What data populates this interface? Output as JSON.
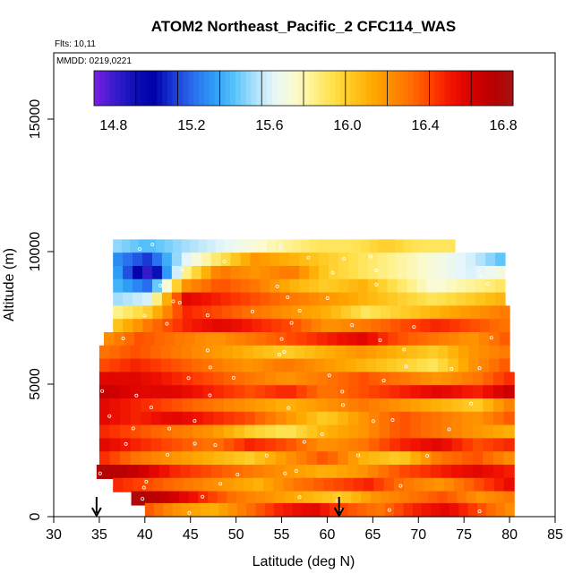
{
  "chart_data": {
    "type": "heatmap",
    "title": "ATOM2 Northeast_Pacific_2 CFC114_WAS",
    "flights_label": "Flts: 10,11",
    "dates_label": "MMDD: 0219,0221",
    "xlabel": "Latitude (deg N)",
    "ylabel": "Altitude (m)",
    "xlim": [
      30,
      85
    ],
    "ylim": [
      0,
      17500
    ],
    "x_ticks": [
      "30",
      "35",
      "40",
      "45",
      "50",
      "55",
      "60",
      "65",
      "70",
      "75",
      "80",
      "85"
    ],
    "y_ticks": [
      "0",
      "5000",
      "10000",
      "15000"
    ],
    "colorbar": {
      "range": [
        14.7,
        16.85
      ],
      "tick_labels": [
        "14.8",
        "15.2",
        "15.6",
        "16.0",
        "16.4",
        "16.8"
      ],
      "colors": [
        "#7a1fe0",
        "#3b1ccf",
        "#1010b8",
        "#0000a8",
        "#1a3ad6",
        "#2a6ff0",
        "#2d9cf5",
        "#56c2fb",
        "#a8e0fc",
        "#e6f6fb",
        "#fbfbd2",
        "#fff18a",
        "#ffe04a",
        "#ffc51c",
        "#ffa800",
        "#ff8a00",
        "#ff6a00",
        "#ff3c00",
        "#f01000",
        "#d40000",
        "#b80000",
        "#a31414"
      ]
    },
    "grid": false,
    "sample_markers": "white circles at sample locations",
    "flight_arrows_latitude": [
      34.7,
      61.3
    ],
    "altitude_bands": [
      {
        "alt": 10200,
        "lat_range": [
          36.5,
          74.0
        ],
        "values": [
          15.5,
          15.4,
          15.5,
          15.6,
          15.7,
          15.8,
          15.9,
          15.9,
          16.0,
          15.9,
          15.9
        ]
      },
      {
        "alt": 9700,
        "lat_range": [
          36.5,
          79.5
        ],
        "values": [
          15.3,
          15.1,
          15.6,
          15.9,
          16.2,
          16.1,
          16.0,
          15.9,
          15.8,
          15.7,
          15.6,
          15.4
        ]
      },
      {
        "alt": 9200,
        "lat_range": [
          36.5,
          79.5
        ],
        "values": [
          15.4,
          14.8,
          15.8,
          16.3,
          16.2,
          16.3,
          16.0,
          15.9,
          15.8,
          15.7,
          15.6,
          15.7
        ]
      },
      {
        "alt": 8700,
        "lat_range": [
          36.5,
          79.5
        ],
        "values": [
          15.4,
          15.2,
          16.2,
          16.4,
          16.3,
          16.1,
          16.0,
          16.1,
          15.9,
          15.7,
          15.8,
          15.9
        ]
      },
      {
        "alt": 8200,
        "lat_range": [
          36.5,
          79.5
        ],
        "values": [
          15.5,
          15.6,
          16.6,
          16.5,
          16.4,
          16.3,
          16.2,
          16.1,
          16.0,
          15.9,
          16.0,
          16.1
        ]
      },
      {
        "alt": 7700,
        "lat_range": [
          36.5,
          80.0
        ],
        "values": [
          15.8,
          16.0,
          16.5,
          16.4,
          16.3,
          16.2,
          16.1,
          15.9,
          16.0,
          16.1,
          16.2,
          16.3
        ]
      },
      {
        "alt": 7200,
        "lat_range": [
          36.5,
          80.0
        ],
        "values": [
          16.0,
          16.3,
          16.5,
          16.6,
          16.5,
          16.4,
          16.2,
          16.3,
          16.4,
          16.5,
          16.4,
          16.3
        ]
      },
      {
        "alt": 6700,
        "lat_range": [
          35.5,
          80.0
        ],
        "values": [
          16.2,
          16.4,
          16.3,
          16.2,
          16.3,
          16.4,
          16.5,
          16.6,
          16.4,
          16.3,
          16.2,
          16.4
        ]
      },
      {
        "alt": 6200,
        "lat_range": [
          35.0,
          80.0
        ],
        "values": [
          16.3,
          16.4,
          16.3,
          16.2,
          16.1,
          16.0,
          16.1,
          16.2,
          16.1,
          16.0,
          16.2,
          16.3
        ]
      },
      {
        "alt": 5700,
        "lat_range": [
          35.0,
          80.0
        ],
        "values": [
          16.4,
          16.5,
          16.4,
          16.3,
          16.2,
          16.3,
          16.2,
          16.1,
          16.0,
          15.9,
          16.2,
          16.4
        ]
      },
      {
        "alt": 5200,
        "lat_range": [
          35.0,
          80.5
        ],
        "values": [
          16.6,
          16.6,
          16.5,
          16.4,
          16.3,
          16.2,
          16.3,
          16.4,
          16.3,
          16.2,
          16.3,
          16.5
        ]
      },
      {
        "alt": 4700,
        "lat_range": [
          35.0,
          80.5
        ],
        "values": [
          16.7,
          16.6,
          16.6,
          16.5,
          16.4,
          16.5,
          16.3,
          16.4,
          16.5,
          16.6,
          16.5,
          16.7
        ]
      },
      {
        "alt": 4200,
        "lat_range": [
          35.0,
          80.5
        ],
        "values": [
          16.6,
          16.5,
          16.4,
          16.3,
          16.2,
          16.1,
          16.2,
          16.3,
          16.2,
          16.1,
          16.0,
          16.3
        ]
      },
      {
        "alt": 3700,
        "lat_range": [
          35.0,
          80.5
        ],
        "values": [
          16.6,
          16.5,
          16.6,
          16.5,
          16.4,
          16.2,
          16.0,
          16.2,
          16.4,
          16.3,
          16.2,
          16.4
        ]
      },
      {
        "alt": 3200,
        "lat_range": [
          35.0,
          80.5
        ],
        "values": [
          16.5,
          16.4,
          16.3,
          16.2,
          16.0,
          15.9,
          16.1,
          16.2,
          16.4,
          16.3,
          16.2,
          16.1
        ]
      },
      {
        "alt": 2700,
        "lat_range": [
          35.0,
          80.5
        ],
        "values": [
          16.6,
          16.5,
          16.4,
          16.3,
          16.5,
          16.4,
          16.2,
          16.3,
          16.5,
          16.6,
          16.4,
          16.5
        ]
      },
      {
        "alt": 2200,
        "lat_range": [
          35.0,
          80.5
        ],
        "values": [
          16.5,
          16.3,
          16.2,
          16.1,
          16.0,
          16.2,
          16.4,
          16.1,
          16.0,
          16.3,
          16.4,
          16.2
        ]
      },
      {
        "alt": 1700,
        "lat_range": [
          34.7,
          80.5
        ],
        "values": [
          16.8,
          16.7,
          16.5,
          16.4,
          16.3,
          16.2,
          16.1,
          16.2,
          16.4,
          16.5,
          16.6,
          16.5
        ]
      },
      {
        "alt": 1200,
        "lat_range": [
          36.5,
          80.5
        ],
        "values": [
          16.5,
          16.4,
          16.3,
          16.2,
          16.1,
          16.3,
          16.4,
          16.5,
          16.3,
          16.2,
          16.4,
          16.6
        ]
      },
      {
        "alt": 700,
        "lat_range": [
          38.5,
          80.5
        ],
        "values": [
          16.8,
          16.7,
          16.5,
          16.3,
          16.2,
          16.1,
          16.0,
          16.2,
          16.3,
          16.4,
          16.2,
          16.3
        ]
      },
      {
        "alt": 250,
        "lat_range": [
          40.0,
          80.5
        ],
        "values": [
          16.4,
          16.2,
          16.1,
          16.3,
          16.5,
          16.6,
          16.4,
          16.3,
          16.5,
          16.6,
          16.4,
          16.2
        ]
      }
    ]
  }
}
